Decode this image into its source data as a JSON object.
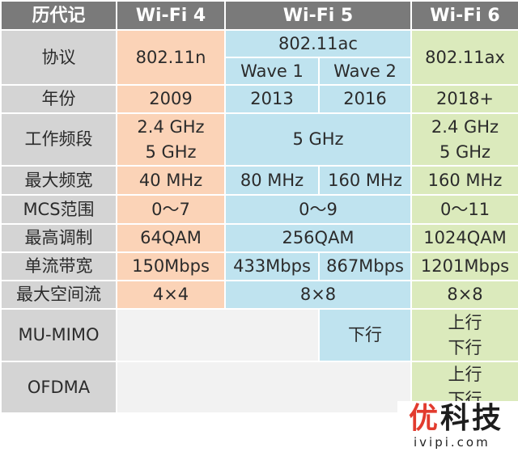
{
  "header": {
    "history": "历代记",
    "wifi4": "Wi-Fi 4",
    "wifi5": "Wi-Fi 5",
    "wifi6": "Wi-Fi 6"
  },
  "rows": {
    "protocol": {
      "label": "协议",
      "wifi4": "802.11n",
      "wifi5": "802.11ac",
      "wifi5_wave1": "Wave 1",
      "wifi5_wave2": "Wave 2",
      "wifi6": "802.11ax"
    },
    "year": {
      "label": "年份",
      "wifi4": "2009",
      "wifi5_wave1": "2013",
      "wifi5_wave2": "2016",
      "wifi6": "2018+"
    },
    "band": {
      "label": "工作频段",
      "wifi4_line1": "2.4 GHz",
      "wifi4_line2": "5 GHz",
      "wifi5": "5 GHz",
      "wifi6_line1": "2.4 GHz",
      "wifi6_line2": "5 GHz"
    },
    "bandwidth": {
      "label": "最大频宽",
      "wifi4": "40 MHz",
      "wifi5_wave1": "80 MHz",
      "wifi5_wave2": "160 MHz",
      "wifi6": "160 MHz"
    },
    "mcs": {
      "label": "MCS范围",
      "wifi4": "0～7",
      "wifi5": "0～9",
      "wifi6": "0～11"
    },
    "modulation": {
      "label": "最高调制",
      "wifi4": "64QAM",
      "wifi5": "256QAM",
      "wifi6": "1024QAM"
    },
    "stream_rate": {
      "label": "单流带宽",
      "wifi4": "150Mbps",
      "wifi5_wave1": "433Mbps",
      "wifi5_wave2": "867Mbps",
      "wifi6": "1201Mbps"
    },
    "streams": {
      "label": "最大空间流",
      "wifi4": "4×4",
      "wifi5": "8×8",
      "wifi6": "8×8"
    },
    "mu_mimo": {
      "label": "MU-MIMO",
      "wifi5_wave2": "下行",
      "wifi6_line1": "上行",
      "wifi6_line2": "下行"
    },
    "ofdma": {
      "label": "OFDMA",
      "wifi6_line1": "上行",
      "wifi6_line2": "下行"
    }
  },
  "watermark": {
    "title_first": "优",
    "title_rest": "科技",
    "subtitle": "ivipi.com"
  },
  "colors": {
    "header_bg": "#7a7a7a",
    "label_bg": "#d4d4d4",
    "wifi4_bg": "#fbd3b7",
    "wifi5_bg": "#bfe3ef",
    "wifi6_bg": "#dbeabc",
    "empty_bg": "#f2f2f2",
    "watermark_accent": "#e23b2e"
  }
}
